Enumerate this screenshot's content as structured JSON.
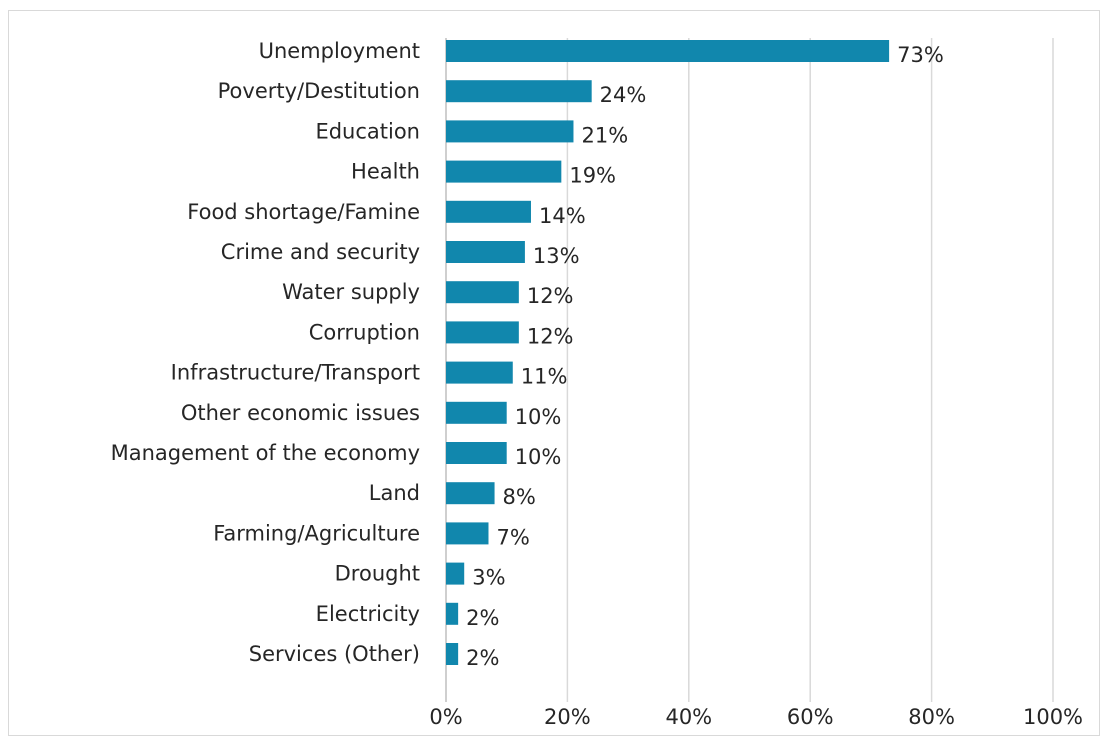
{
  "chart_data": {
    "type": "bar",
    "orientation": "horizontal",
    "categories": [
      "Unemployment",
      "Poverty/Destitution",
      "Education",
      "Health",
      "Food shortage/Famine",
      "Crime and security",
      "Water supply",
      "Corruption",
      "Infrastructure/Transport",
      "Other economic issues",
      "Management of the economy",
      "Land",
      "Farming/Agriculture",
      "Drought",
      "Electricity",
      "Services (Other)"
    ],
    "values": [
      73,
      24,
      21,
      19,
      14,
      13,
      12,
      12,
      11,
      10,
      10,
      8,
      7,
      3,
      2,
      2
    ],
    "value_labels": [
      "73%",
      "24%",
      "21%",
      "19%",
      "14%",
      "13%",
      "12%",
      "12%",
      "11%",
      "10%",
      "10%",
      "8%",
      "7%",
      "3%",
      "2%",
      "2%"
    ],
    "xlim": [
      0,
      100
    ],
    "x_ticks": [
      0,
      20,
      40,
      60,
      80,
      100
    ],
    "x_tick_labels": [
      "0%",
      "20%",
      "40%",
      "60%",
      "80%",
      "100%"
    ],
    "grid": "vertical",
    "legend": "none",
    "bar_color": "#1187ad",
    "grid_color": "#d9d9d9",
    "text_color": "#262626"
  }
}
